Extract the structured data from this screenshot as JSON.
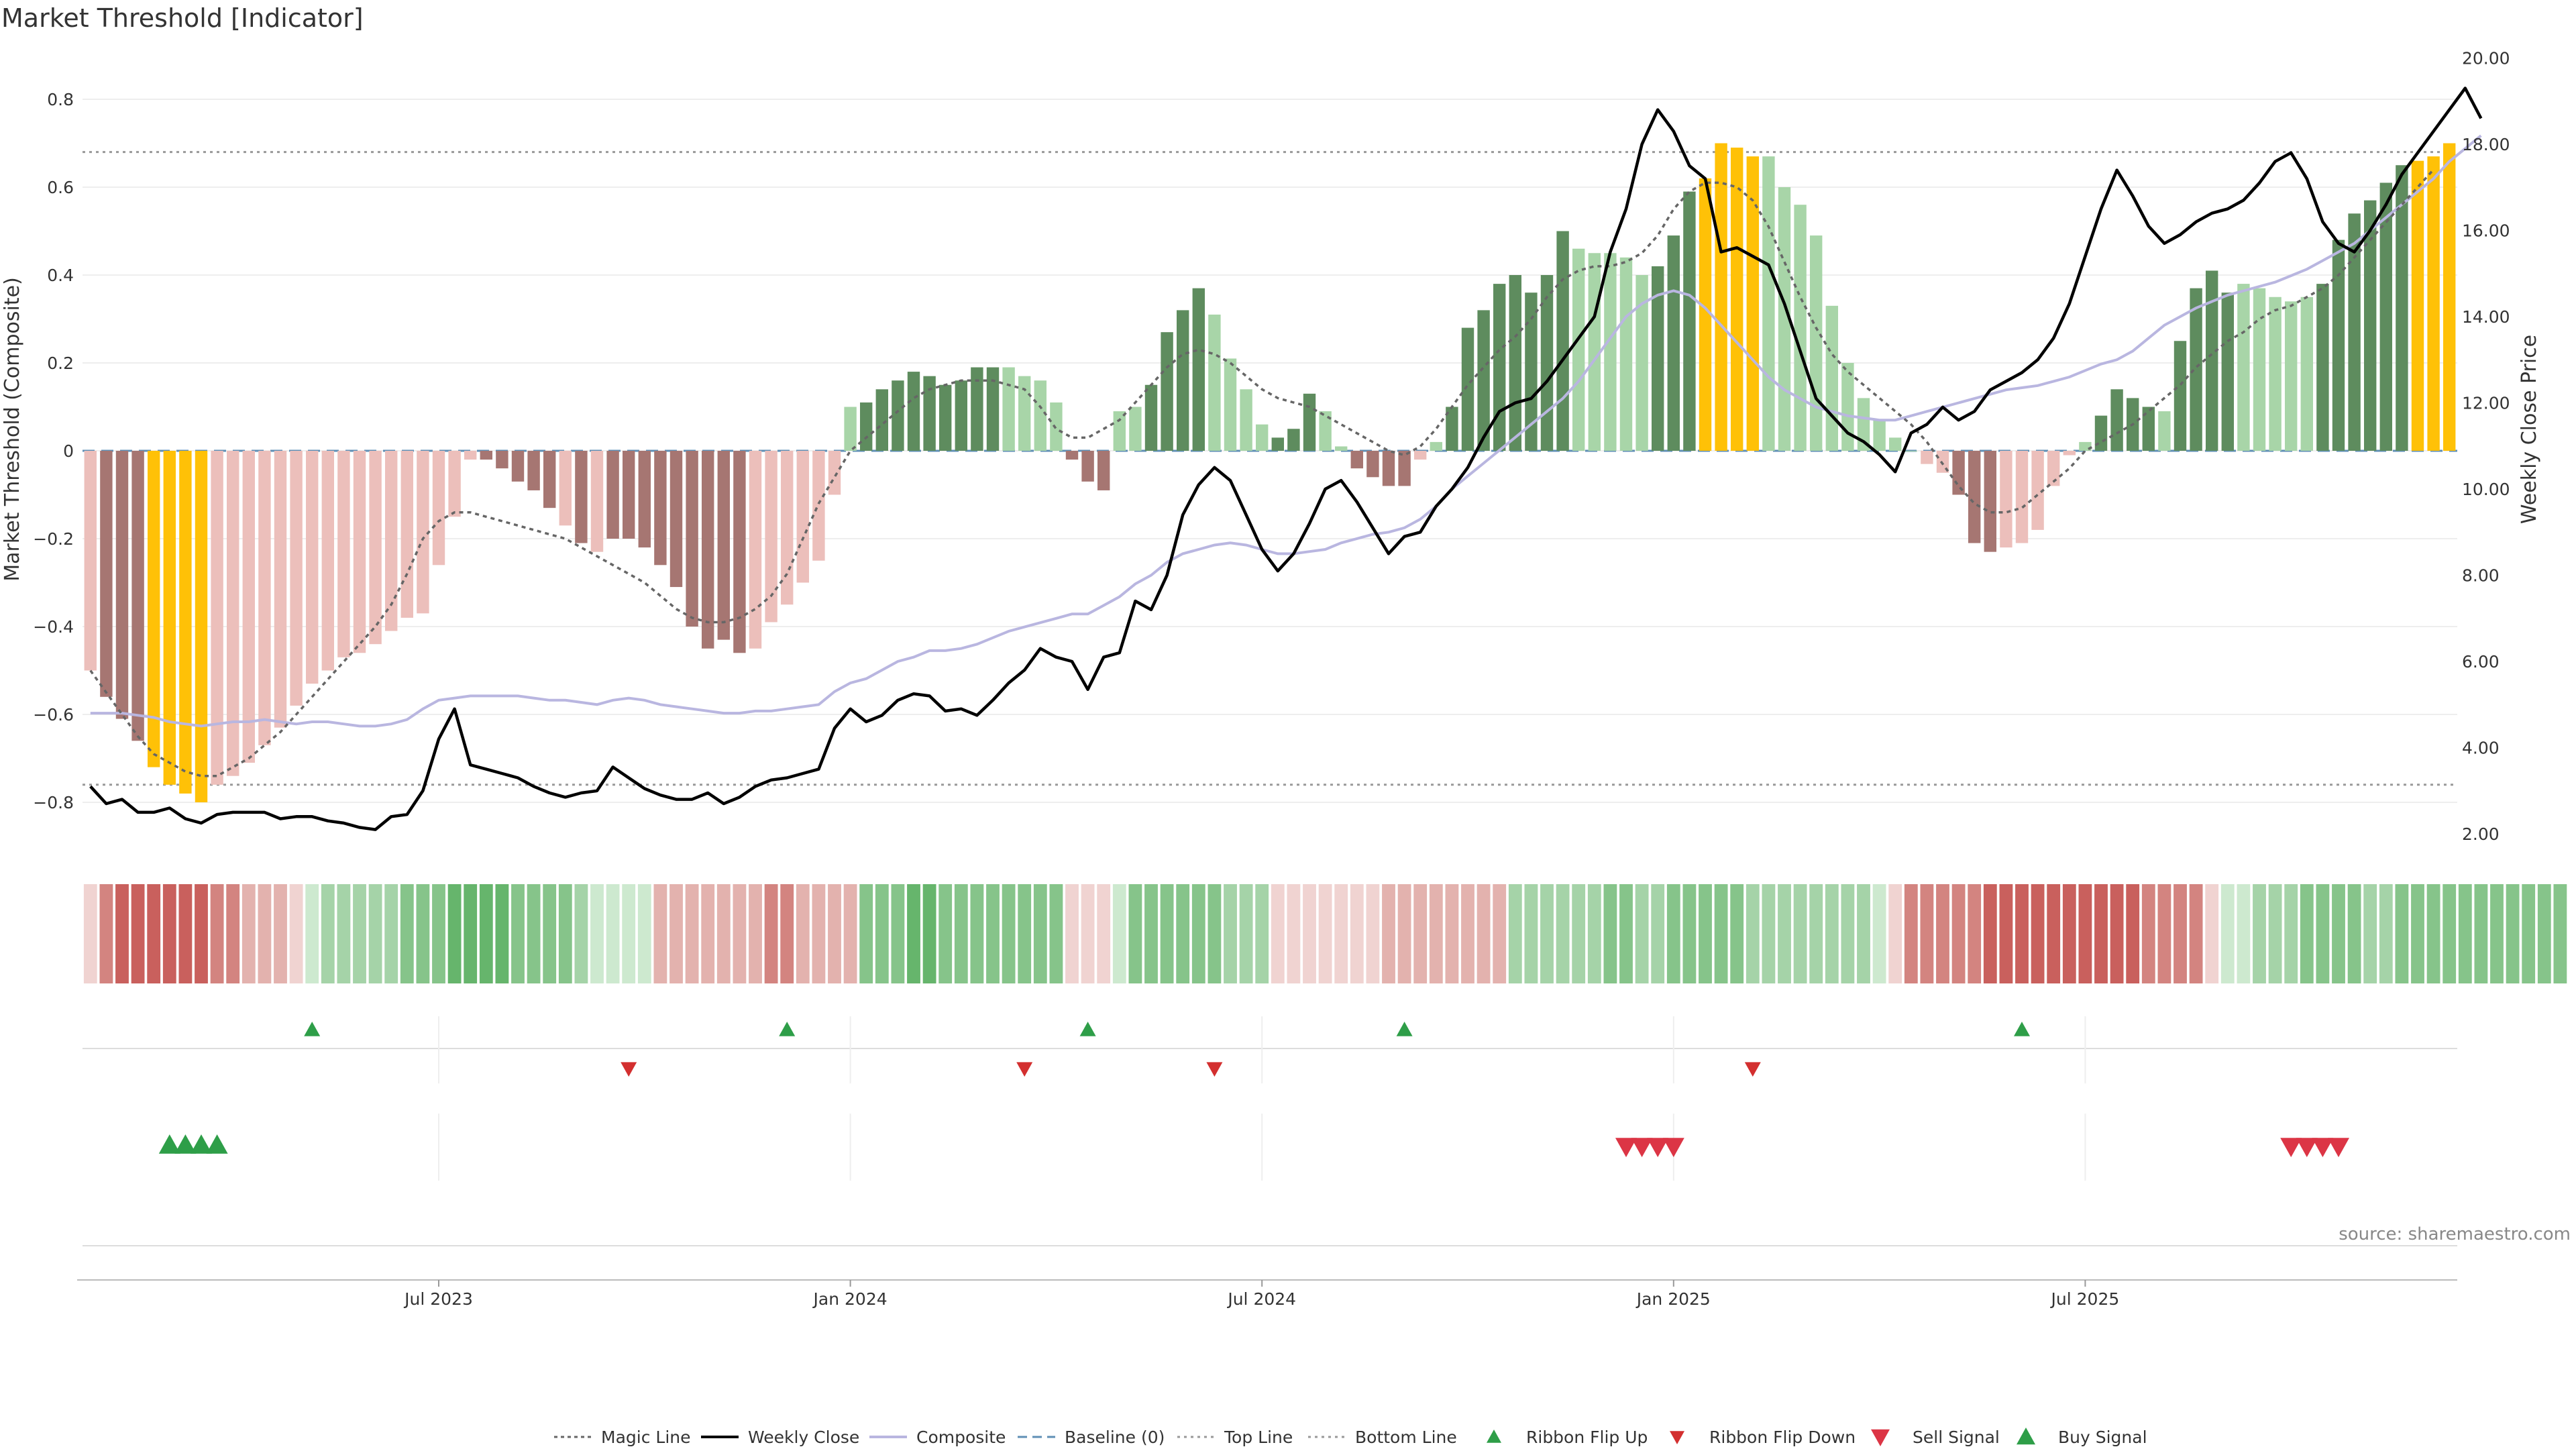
{
  "title": "Market Threshold [Indicator]",
  "source": "source: sharemaestro.com",
  "colors": {
    "yellow": "#ffc107",
    "green_dark": "#5e8c5e",
    "green_light": "#a8d5a8",
    "red_dark": "#a67672",
    "red_light": "#ecbfbb",
    "close": "#000000",
    "composite": "#b9b6e0",
    "magic": "#666666",
    "baseline": "#5f8fb5",
    "ref_line": "#999999",
    "flip_up": "#2e9e48",
    "flip_down": "#d32f2f",
    "sell": "#dc3545",
    "buy": "#2e9e48"
  },
  "chart_data": {
    "type": "bar",
    "title": "Market Threshold [Indicator]",
    "ylabel_left": "Market Threshold (Composite)",
    "ylabel_right": "Weekly Close Price",
    "ylim_left": [
      -0.9,
      0.9
    ],
    "ylim_right": [
      1.5,
      20.0
    ],
    "yticks_left": [
      "0.8",
      "0.6",
      "0.4",
      "0.2",
      "0",
      "−0.2",
      "−0.4",
      "−0.6",
      "−0.8"
    ],
    "yticks_left_values": [
      0.8,
      0.6,
      0.4,
      0.2,
      0,
      -0.2,
      -0.4,
      -0.6,
      -0.8
    ],
    "yticks_right": [
      "20.00",
      "18.00",
      "16.00",
      "14.00",
      "12.00",
      "10.00",
      "8.00",
      "6.00",
      "4.00",
      "2.00"
    ],
    "yticks_right_values": [
      20,
      18,
      16,
      14,
      12,
      10,
      8,
      6,
      4,
      2
    ],
    "xticks": [
      {
        "label": "Jul 2023",
        "week": 22
      },
      {
        "label": "Jan 2024",
        "week": 48
      },
      {
        "label": "Jul 2024",
        "week": 74
      },
      {
        "label": "Jan 2025",
        "week": 100
      },
      {
        "label": "Jul 2025",
        "week": 126
      }
    ],
    "top_line": 0.68,
    "bottom_line": -0.76,
    "baseline": 0,
    "composite": [
      -0.5,
      -0.56,
      -0.61,
      -0.66,
      -0.72,
      -0.76,
      -0.78,
      -0.8,
      -0.76,
      -0.74,
      -0.71,
      -0.67,
      -0.63,
      -0.58,
      -0.53,
      -0.5,
      -0.47,
      -0.46,
      -0.44,
      -0.41,
      -0.38,
      -0.37,
      -0.26,
      -0.15,
      -0.02,
      -0.02,
      -0.04,
      -0.07,
      -0.09,
      -0.13,
      -0.17,
      -0.21,
      -0.23,
      -0.2,
      -0.2,
      -0.22,
      -0.26,
      -0.31,
      -0.4,
      -0.45,
      -0.43,
      -0.46,
      -0.45,
      -0.39,
      -0.35,
      -0.3,
      -0.25,
      -0.1,
      0.1,
      0.11,
      0.14,
      0.16,
      0.18,
      0.17,
      0.15,
      0.16,
      0.19,
      0.19,
      0.19,
      0.17,
      0.16,
      0.11,
      -0.02,
      -0.07,
      -0.09,
      0.09,
      0.1,
      0.15,
      0.27,
      0.32,
      0.37,
      0.31,
      0.21,
      0.14,
      0.06,
      0.03,
      0.05,
      0.13,
      0.09,
      0.01,
      -0.04,
      -0.06,
      -0.08,
      -0.08,
      -0.02,
      0.02,
      0.1,
      0.28,
      0.32,
      0.38,
      0.4,
      0.36,
      0.4,
      0.5,
      0.46,
      0.45,
      0.45,
      0.44,
      0.4,
      0.42,
      0.49,
      0.59,
      0.62,
      0.7,
      0.69,
      0.67,
      0.67,
      0.6,
      0.56,
      0.49,
      0.33,
      0.2,
      0.12,
      0.07,
      0.03,
      0,
      -0.03,
      -0.05,
      -0.1,
      -0.21,
      -0.23,
      -0.22,
      -0.21,
      -0.18,
      -0.08,
      -0.01,
      0.02,
      0.08,
      0.14,
      0.12,
      0.1,
      0.09,
      0.25,
      0.37,
      0.41,
      0.36,
      0.38,
      0.37,
      0.35,
      0.34,
      0.35,
      0.38,
      0.48,
      0.54,
      0.57,
      0.61,
      0.65,
      0.66,
      0.67,
      0.7
    ],
    "bar_class": [
      "L",
      "D",
      "D",
      "D",
      "Y",
      "Y",
      "Y",
      "Y",
      "L",
      "L",
      "L",
      "L",
      "L",
      "L",
      "L",
      "L",
      "L",
      "L",
      "L",
      "L",
      "L",
      "L",
      "L",
      "L",
      "L",
      "D",
      "D",
      "D",
      "D",
      "D",
      "L",
      "D",
      "L",
      "D",
      "D",
      "D",
      "D",
      "D",
      "D",
      "D",
      "D",
      "D",
      "L",
      "L",
      "L",
      "L",
      "L",
      "L",
      "L",
      "D",
      "D",
      "D",
      "D",
      "D",
      "D",
      "D",
      "D",
      "D",
      "L",
      "L",
      "L",
      "L",
      "D",
      "D",
      "D",
      "L",
      "L",
      "D",
      "D",
      "D",
      "D",
      "L",
      "L",
      "L",
      "L",
      "D",
      "D",
      "D",
      "L",
      "L",
      "D",
      "D",
      "D",
      "D",
      "L",
      "L",
      "D",
      "D",
      "D",
      "D",
      "D",
      "D",
      "D",
      "D",
      "L",
      "L",
      "L",
      "L",
      "L",
      "D",
      "D",
      "D",
      "Y",
      "Y",
      "Y",
      "Y",
      "L",
      "L",
      "L",
      "L",
      "L",
      "L",
      "L",
      "L",
      "L",
      "L",
      "L",
      "L",
      "D",
      "D",
      "D",
      "L",
      "L",
      "L",
      "L",
      "L",
      "L",
      "D",
      "D",
      "D",
      "D",
      "L",
      "D",
      "D",
      "D",
      "D",
      "L",
      "L",
      "L",
      "L",
      "L",
      "D",
      "D",
      "D",
      "D",
      "D",
      "D",
      "Y",
      "Y",
      "Y",
      "Y",
      "Y"
    ],
    "weekly_close": [
      3.1,
      2.7,
      2.8,
      2.5,
      2.5,
      2.6,
      2.35,
      2.25,
      2.45,
      2.5,
      2.5,
      2.5,
      2.35,
      2.4,
      2.4,
      2.3,
      2.25,
      2.15,
      2.1,
      2.4,
      2.45,
      3,
      4.2,
      4.9,
      3.6,
      3.5,
      3.4,
      3.3,
      3.1,
      2.95,
      2.85,
      2.95,
      3,
      3.55,
      3.3,
      3.05,
      2.9,
      2.8,
      2.8,
      2.95,
      2.7,
      2.85,
      3.1,
      3.25,
      3.3,
      3.4,
      3.5,
      4.45,
      4.9,
      4.6,
      4.75,
      5.1,
      5.25,
      5.2,
      4.85,
      4.9,
      4.75,
      5.1,
      5.5,
      5.8,
      6.3,
      6.1,
      6,
      5.35,
      6.1,
      6.2,
      7.4,
      7.2,
      8,
      9.4,
      10.1,
      10.5,
      10.2,
      9.4,
      8.6,
      8.1,
      8.5,
      9.2,
      10,
      10.2,
      9.7,
      9.1,
      8.5,
      8.9,
      9,
      9.6,
      10,
      10.5,
      11.2,
      11.8,
      12,
      12.1,
      12.5,
      13,
      13.5,
      14,
      15.5,
      16.5,
      18,
      18.8,
      18.3,
      17.5,
      17.2,
      15.5,
      15.6,
      15.4,
      15.2,
      14.3,
      13.2,
      12.1,
      11.7,
      11.3,
      11.1,
      10.8,
      10.4,
      11.3,
      11.5,
      11.9,
      11.6,
      11.8,
      12.3,
      12.5,
      12.7,
      13,
      13.5,
      14.3,
      15.4,
      16.5,
      17.4,
      16.8,
      16.1,
      15.7,
      15.9,
      16.2,
      16.4,
      16.5,
      16.7,
      17.1,
      17.6,
      17.8,
      17.2,
      16.2,
      15.7,
      15.5,
      16,
      16.6,
      17.3,
      17.8,
      18.3,
      18.8,
      19.3,
      18.6
    ],
    "composite_line": [
      4.8,
      4.8,
      4.8,
      4.75,
      4.7,
      4.6,
      4.55,
      4.5,
      4.55,
      4.6,
      4.6,
      4.65,
      4.6,
      4.55,
      4.6,
      4.6,
      4.55,
      4.5,
      4.5,
      4.55,
      4.65,
      4.9,
      5.1,
      5.15,
      5.2,
      5.2,
      5.2,
      5.2,
      5.15,
      5.1,
      5.1,
      5.05,
      5,
      5.1,
      5.15,
      5.1,
      5,
      4.95,
      4.9,
      4.85,
      4.8,
      4.8,
      4.85,
      4.85,
      4.9,
      4.95,
      5,
      5.3,
      5.5,
      5.6,
      5.8,
      6,
      6.1,
      6.25,
      6.25,
      6.3,
      6.4,
      6.55,
      6.7,
      6.8,
      6.9,
      7,
      7.1,
      7.1,
      7.3,
      7.5,
      7.8,
      8,
      8.3,
      8.5,
      8.6,
      8.7,
      8.75,
      8.7,
      8.6,
      8.5,
      8.5,
      8.55,
      8.6,
      8.75,
      8.85,
      8.95,
      9,
      9.1,
      9.3,
      9.6,
      10,
      10.3,
      10.6,
      10.9,
      11.2,
      11.5,
      11.8,
      12.1,
      12.5,
      13,
      13.5,
      14,
      14.3,
      14.5,
      14.6,
      14.5,
      14.2,
      13.8,
      13.4,
      13,
      12.6,
      12.3,
      12.1,
      11.9,
      11.8,
      11.7,
      11.65,
      11.6,
      11.6,
      11.7,
      11.8,
      11.9,
      12,
      12.1,
      12.2,
      12.3,
      12.35,
      12.4,
      12.5,
      12.6,
      12.75,
      12.9,
      13,
      13.2,
      13.5,
      13.8,
      14,
      14.2,
      14.35,
      14.5,
      14.6,
      14.7,
      14.8,
      14.95,
      15.1,
      15.3,
      15.5,
      15.7,
      16,
      16.3,
      16.6,
      16.9,
      17.2,
      17.6,
      17.9,
      18.2
    ],
    "magic_line": [
      -0.5,
      -0.55,
      -0.6,
      -0.65,
      -0.69,
      -0.71,
      -0.73,
      -0.74,
      -0.74,
      -0.72,
      -0.7,
      -0.67,
      -0.64,
      -0.6,
      -0.56,
      -0.52,
      -0.48,
      -0.44,
      -0.4,
      -0.35,
      -0.28,
      -0.2,
      -0.16,
      -0.14,
      -0.14,
      -0.15,
      -0.16,
      -0.17,
      -0.18,
      -0.19,
      -0.2,
      -0.22,
      -0.24,
      -0.26,
      -0.28,
      -0.3,
      -0.33,
      -0.36,
      -0.38,
      -0.39,
      -0.39,
      -0.38,
      -0.36,
      -0.33,
      -0.28,
      -0.2,
      -0.12,
      -0.06,
      0,
      0.03,
      0.06,
      0.09,
      0.12,
      0.14,
      0.15,
      0.16,
      0.16,
      0.16,
      0.15,
      0.14,
      0.1,
      0.05,
      0.03,
      0.03,
      0.05,
      0.07,
      0.11,
      0.15,
      0.19,
      0.22,
      0.23,
      0.22,
      0.2,
      0.17,
      0.14,
      0.12,
      0.11,
      0.1,
      0.08,
      0.06,
      0.04,
      0.02,
      0,
      -0.01,
      0.01,
      0.05,
      0.1,
      0.15,
      0.19,
      0.23,
      0.26,
      0.3,
      0.35,
      0.39,
      0.41,
      0.42,
      0.42,
      0.43,
      0.45,
      0.49,
      0.55,
      0.59,
      0.61,
      0.61,
      0.6,
      0.57,
      0.51,
      0.43,
      0.35,
      0.28,
      0.22,
      0.18,
      0.15,
      0.12,
      0.09,
      0.06,
      0.02,
      -0.03,
      -0.08,
      -0.12,
      -0.14,
      -0.14,
      -0.13,
      -0.1,
      -0.07,
      -0.04,
      0,
      0.02,
      0.04,
      0.06,
      0.09,
      0.12,
      0.15,
      0.19,
      0.22,
      0.25,
      0.27,
      0.3,
      0.32,
      0.33,
      0.35,
      0.37,
      0.4,
      0.44,
      0.48,
      0.52,
      0.56,
      0.6,
      0.64
    ],
    "ribbon": [
      -1,
      -3,
      -4,
      -4,
      -4,
      -4,
      -4,
      -4,
      -3,
      -3,
      -2,
      -2,
      -2,
      -1,
      1,
      2,
      2,
      2,
      2,
      2,
      3,
      3,
      3,
      4,
      4,
      4,
      4,
      3,
      3,
      3,
      3,
      2,
      1,
      1,
      1,
      1,
      -2,
      -2,
      -2,
      -2,
      -2,
      -2,
      -2,
      -3,
      -3,
      -2,
      -2,
      -2,
      -2,
      3,
      3,
      3,
      4,
      4,
      3,
      3,
      3,
      3,
      3,
      3,
      3,
      3,
      -1,
      -1,
      -1,
      1,
      3,
      3,
      3,
      3,
      3,
      3,
      2,
      2,
      2,
      -1,
      -1,
      -1,
      -1,
      -1,
      -1,
      -1,
      -2,
      -2,
      -2,
      -2,
      -2,
      -2,
      -2,
      -2,
      2,
      2,
      2,
      2,
      2,
      2,
      3,
      3,
      2,
      2,
      3,
      3,
      3,
      3,
      3,
      2,
      2,
      2,
      2,
      2,
      2,
      2,
      2,
      1,
      -1,
      -3,
      -3,
      -3,
      -3,
      -3,
      -4,
      -4,
      -4,
      -4,
      -4,
      -4,
      -4,
      -4,
      -4,
      -4,
      -3,
      -3,
      -3,
      -3,
      -1,
      1,
      1,
      2,
      2,
      2,
      3,
      3,
      3,
      3,
      2,
      2,
      3,
      3,
      3,
      3,
      3,
      3,
      3,
      3,
      3,
      3,
      3
    ],
    "ribbon_flip_up_weeks": [
      14,
      44,
      63,
      83,
      122
    ],
    "ribbon_flip_down_weeks": [
      34,
      59,
      71,
      105
    ],
    "buy_signal_weeks": [
      5,
      6,
      7,
      8
    ],
    "sell_signal_weeks": [
      97,
      98,
      99,
      100,
      139,
      140,
      141,
      142
    ],
    "legend": [
      {
        "key": "magic",
        "label": "Magic Line"
      },
      {
        "key": "close",
        "label": "Weekly Close"
      },
      {
        "key": "composite",
        "label": "Composite"
      },
      {
        "key": "baseline",
        "label": "Baseline (0)"
      },
      {
        "key": "top",
        "label": "Top Line"
      },
      {
        "key": "bottom",
        "label": "Bottom Line"
      },
      {
        "key": "flip_up",
        "label": "Ribbon Flip Up"
      },
      {
        "key": "flip_down",
        "label": "Ribbon Flip Down"
      },
      {
        "key": "sell",
        "label": "Sell Signal"
      },
      {
        "key": "buy",
        "label": "Buy Signal"
      }
    ]
  }
}
